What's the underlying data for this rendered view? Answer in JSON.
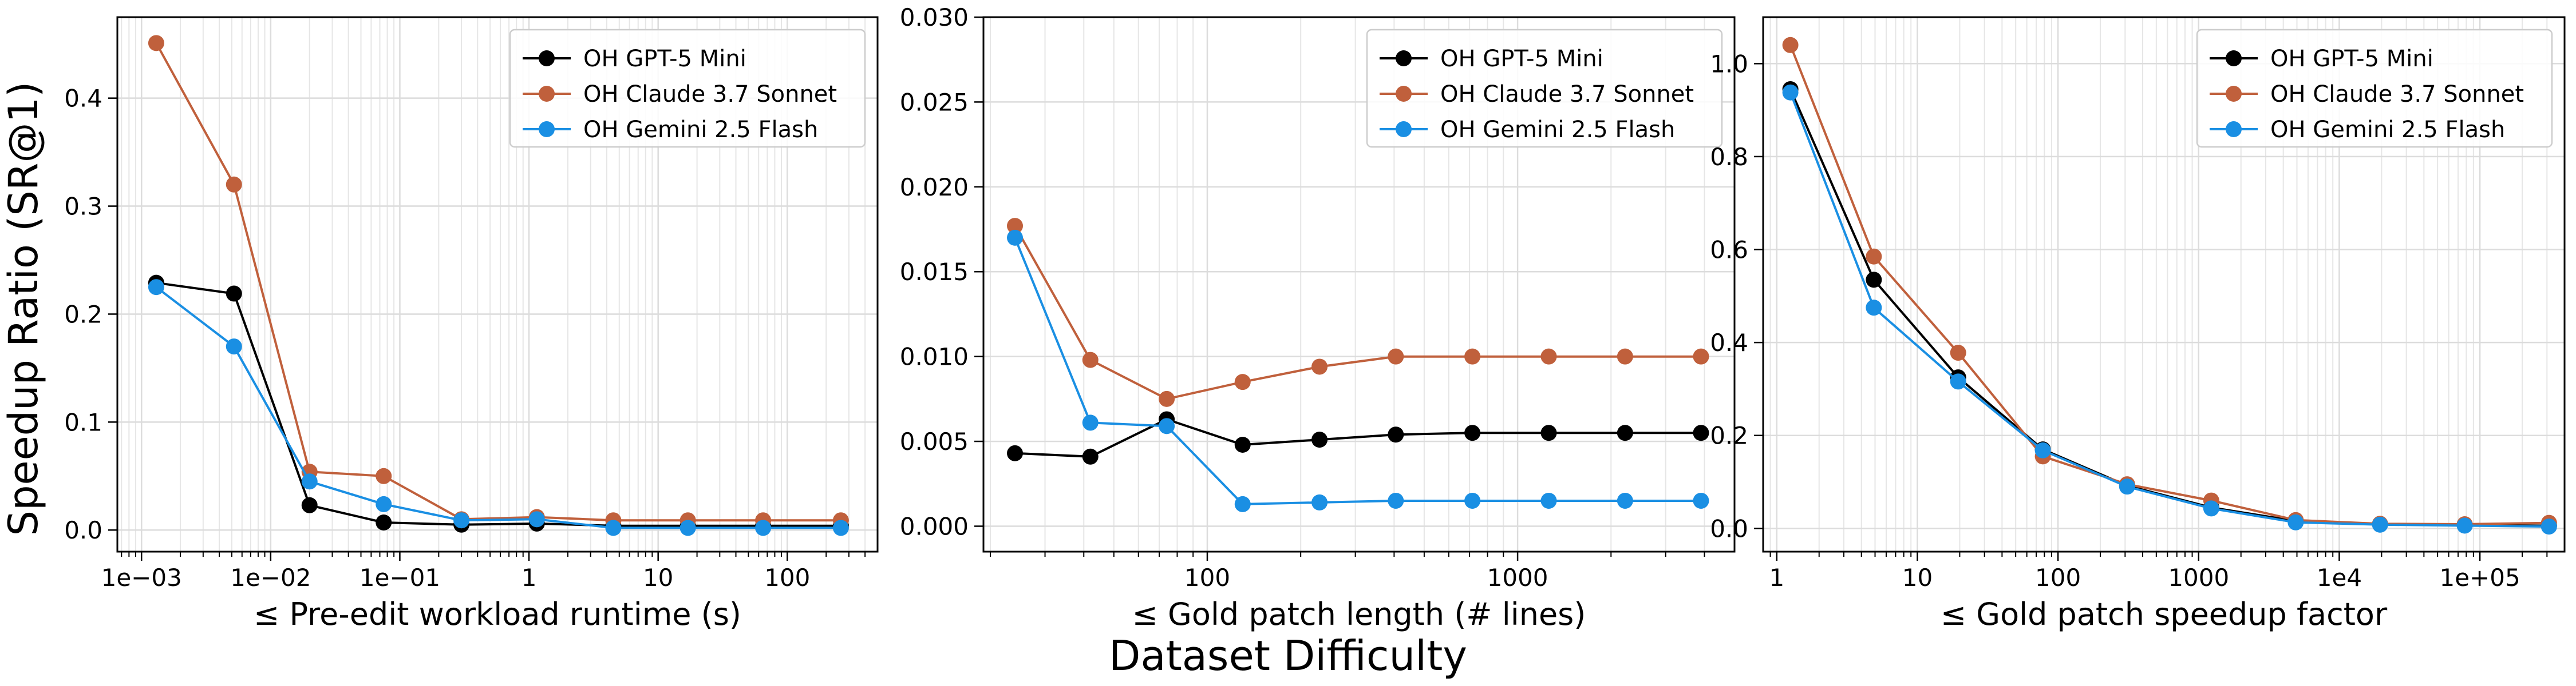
{
  "figure": {
    "ylabel": "Speedup Ratio (SR@1)",
    "xlabel": "Dataset Difficulty"
  },
  "series_styles": [
    {
      "name": "OH GPT-5 Mini",
      "color": "#000000"
    },
    {
      "name": "OH Claude 3.7 Sonnet",
      "color": "#c0603c"
    },
    {
      "name": "OH Gemini 2.5 Flash",
      "color": "#1a8fe3"
    }
  ],
  "chart_data": [
    {
      "type": "line",
      "xlabel": "≤ Pre-edit workload runtime (s)",
      "ylabel": "",
      "xscale": "log",
      "xlim": [
        0.00065,
        500
      ],
      "ylim": [
        -0.02,
        0.475
      ],
      "xticks": [
        {
          "value": 0.001,
          "label": "1e−03"
        },
        {
          "value": 0.01,
          "label": "1e−02"
        },
        {
          "value": 0.1,
          "label": "1e−01"
        },
        {
          "value": 1,
          "label": "1"
        },
        {
          "value": 10,
          "label": "10"
        },
        {
          "value": 100,
          "label": "100"
        }
      ],
      "yticks": [
        {
          "value": 0.0,
          "label": "0.0"
        },
        {
          "value": 0.1,
          "label": "0.1"
        },
        {
          "value": 0.2,
          "label": "0.2"
        },
        {
          "value": 0.3,
          "label": "0.3"
        },
        {
          "value": 0.4,
          "label": "0.4"
        }
      ],
      "grid": true,
      "legend": "top-right",
      "x": [
        0.0013,
        0.0052,
        0.02,
        0.075,
        0.3,
        1.15,
        4.5,
        17,
        65,
        260
      ],
      "series": [
        {
          "name": "OH GPT-5 Mini",
          "values": [
            0.229,
            0.219,
            0.023,
            0.007,
            0.005,
            0.006,
            0.004,
            0.004,
            0.004,
            0.004
          ]
        },
        {
          "name": "OH Claude 3.7 Sonnet",
          "values": [
            0.451,
            0.32,
            0.054,
            0.05,
            0.01,
            0.012,
            0.009,
            0.009,
            0.009,
            0.009
          ]
        },
        {
          "name": "OH Gemini 2.5 Flash",
          "values": [
            0.225,
            0.17,
            0.045,
            0.024,
            0.009,
            0.01,
            0.002,
            0.002,
            0.002,
            0.002
          ]
        }
      ]
    },
    {
      "type": "line",
      "xlabel": "≤ Gold patch length (# lines)",
      "ylabel": "",
      "xscale": "log",
      "xlim": [
        19,
        5000
      ],
      "ylim": [
        -0.0015,
        0.03
      ],
      "xticks": [
        {
          "value": 100,
          "label": "100"
        },
        {
          "value": 1000,
          "label": "1000"
        }
      ],
      "yticks": [
        {
          "value": 0.0,
          "label": "0.000"
        },
        {
          "value": 0.005,
          "label": "0.005"
        },
        {
          "value": 0.01,
          "label": "0.010"
        },
        {
          "value": 0.015,
          "label": "0.015"
        },
        {
          "value": 0.02,
          "label": "0.020"
        },
        {
          "value": 0.025,
          "label": "0.025"
        },
        {
          "value": 0.03,
          "label": "0.030"
        }
      ],
      "grid": true,
      "legend": "top-right",
      "x": [
        24,
        42,
        74,
        130,
        230,
        405,
        715,
        1260,
        2220,
        3900
      ],
      "series": [
        {
          "name": "OH GPT-5 Mini",
          "values": [
            0.0043,
            0.0041,
            0.0063,
            0.0048,
            0.0051,
            0.0054,
            0.0055,
            0.0055,
            0.0055,
            0.0055
          ]
        },
        {
          "name": "OH Claude 3.7 Sonnet",
          "values": [
            0.0177,
            0.0098,
            0.0075,
            0.0085,
            0.0094,
            0.01,
            0.01,
            0.01,
            0.01,
            0.01
          ]
        },
        {
          "name": "OH Gemini 2.5 Flash",
          "values": [
            0.017,
            0.0061,
            0.0059,
            0.0013,
            0.0014,
            0.0015,
            0.0015,
            0.0015,
            0.0015,
            0.0015
          ]
        }
      ]
    },
    {
      "type": "line",
      "xlabel": "≤ Gold patch speedup factor",
      "ylabel": "",
      "xscale": "log",
      "xlim": [
        0.8,
        400000
      ],
      "ylim": [
        -0.05,
        1.1
      ],
      "xticks": [
        {
          "value": 1,
          "label": "1"
        },
        {
          "value": 10,
          "label": "10"
        },
        {
          "value": 100,
          "label": "100"
        },
        {
          "value": 1000,
          "label": "1000"
        },
        {
          "value": 10000,
          "label": "1e4"
        },
        {
          "value": 100000,
          "label": "1e+05"
        }
      ],
      "yticks": [
        {
          "value": 0.0,
          "label": "0.0"
        },
        {
          "value": 0.2,
          "label": "0.2"
        },
        {
          "value": 0.4,
          "label": "0.4"
        },
        {
          "value": 0.6,
          "label": "0.6"
        },
        {
          "value": 0.8,
          "label": "0.8"
        },
        {
          "value": 1.0,
          "label": "1.0"
        }
      ],
      "grid": true,
      "legend": "top-right",
      "x": [
        1.25,
        4.9,
        19.5,
        78,
        310,
        1230,
        4900,
        19500,
        78000,
        310000
      ],
      "series": [
        {
          "name": "OH GPT-5 Mini",
          "values": [
            0.945,
            0.535,
            0.325,
            0.17,
            0.092,
            0.045,
            0.016,
            0.009,
            0.007,
            0.006
          ]
        },
        {
          "name": "OH Claude 3.7 Sonnet",
          "values": [
            1.04,
            0.585,
            0.378,
            0.155,
            0.095,
            0.06,
            0.018,
            0.01,
            0.009,
            0.012
          ]
        },
        {
          "name": "OH Gemini 2.5 Flash",
          "values": [
            0.938,
            0.475,
            0.316,
            0.168,
            0.09,
            0.043,
            0.013,
            0.008,
            0.006,
            0.004
          ]
        }
      ]
    }
  ]
}
